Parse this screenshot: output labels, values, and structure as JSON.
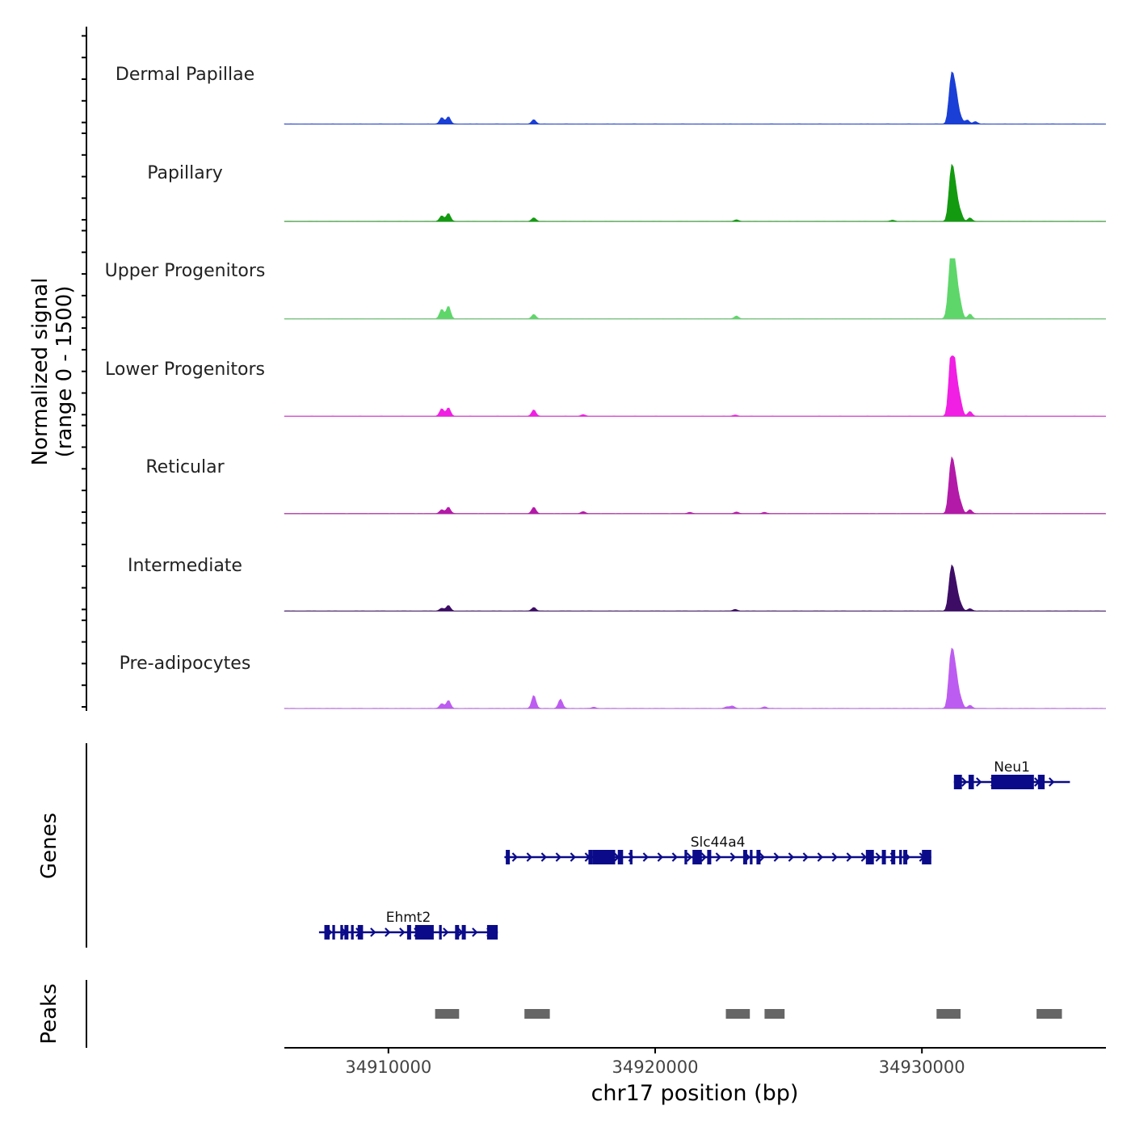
{
  "chart_data": {
    "type": "area",
    "title": "",
    "ylabel_line1": "Normalized signal",
    "ylabel_line2": "(range 0 - 1500)",
    "xlabel": "chr17 position (bp)",
    "xlim": [
      34906100,
      34936900
    ],
    "ylim": [
      0,
      1500
    ],
    "x_ticks": [
      {
        "value": 34910000,
        "label": "34910000"
      },
      {
        "value": 34920000,
        "label": "34920000"
      },
      {
        "value": 34930000,
        "label": "34930000"
      }
    ],
    "gene_panel_label": "Genes",
    "peak_panel_label": "Peaks",
    "tracks": [
      {
        "name": "Dermal Papillae",
        "color": "#1a3fd6",
        "peaks": [
          [
            34912000,
            160
          ],
          [
            34912250,
            180
          ],
          [
            34915450,
            110
          ],
          [
            34931150,
            1050
          ],
          [
            34931450,
            150
          ],
          [
            34931700,
            100
          ],
          [
            34932000,
            60
          ],
          [
            34931050,
            400
          ],
          [
            34931300,
            500
          ]
        ]
      },
      {
        "name": "Papillary",
        "color": "#139a10",
        "peaks": [
          [
            34912000,
            140
          ],
          [
            34912250,
            200
          ],
          [
            34915450,
            90
          ],
          [
            34923050,
            40
          ],
          [
            34928900,
            30
          ],
          [
            34931150,
            1150
          ],
          [
            34931450,
            200
          ],
          [
            34931800,
            90
          ],
          [
            34931050,
            450
          ],
          [
            34931300,
            450
          ]
        ]
      },
      {
        "name": "Upper Progenitors",
        "color": "#5ed66a",
        "peaks": [
          [
            34912000,
            240
          ],
          [
            34912250,
            320
          ],
          [
            34915450,
            110
          ],
          [
            34923050,
            70
          ],
          [
            34931150,
            1550
          ],
          [
            34931450,
            250
          ],
          [
            34931800,
            120
          ],
          [
            34931050,
            650
          ],
          [
            34931300,
            700
          ]
        ]
      },
      {
        "name": "Lower Progenitors",
        "color": "#f01fe3",
        "peaks": [
          [
            34912000,
            190
          ],
          [
            34912250,
            210
          ],
          [
            34915450,
            160
          ],
          [
            34917300,
            40
          ],
          [
            34923000,
            30
          ],
          [
            34931150,
            1400
          ],
          [
            34931450,
            260
          ],
          [
            34931800,
            120
          ],
          [
            34931050,
            600
          ],
          [
            34931300,
            650
          ]
        ]
      },
      {
        "name": "Reticular",
        "color": "#b31aa8",
        "peaks": [
          [
            34912000,
            100
          ],
          [
            34912250,
            160
          ],
          [
            34915450,
            160
          ],
          [
            34917300,
            50
          ],
          [
            34921300,
            30
          ],
          [
            34923050,
            40
          ],
          [
            34924100,
            30
          ],
          [
            34931150,
            1100
          ],
          [
            34931450,
            230
          ],
          [
            34931800,
            100
          ],
          [
            34931050,
            500
          ],
          [
            34931300,
            500
          ]
        ]
      },
      {
        "name": "Intermediate",
        "color": "#3d0d66",
        "peaks": [
          [
            34912000,
            70
          ],
          [
            34912250,
            140
          ],
          [
            34915450,
            90
          ],
          [
            34923000,
            40
          ],
          [
            34931150,
            900
          ],
          [
            34931450,
            150
          ],
          [
            34931800,
            60
          ],
          [
            34931050,
            400
          ],
          [
            34931300,
            400
          ]
        ]
      },
      {
        "name": "Pre-adipocytes",
        "color": "#bd5cf0",
        "peaks": [
          [
            34912000,
            120
          ],
          [
            34912250,
            200
          ],
          [
            34915450,
            330
          ],
          [
            34916450,
            230
          ],
          [
            34917700,
            30
          ],
          [
            34922700,
            40
          ],
          [
            34922900,
            60
          ],
          [
            34924100,
            40
          ],
          [
            34931150,
            1200
          ],
          [
            34931450,
            220
          ],
          [
            34931800,
            80
          ],
          [
            34931050,
            550
          ],
          [
            34931300,
            550
          ]
        ]
      }
    ],
    "genes": [
      {
        "name": "Neu1",
        "start": 34931200,
        "end": 34935550,
        "row": 0,
        "exons": [
          [
            34931200,
            34931500
          ],
          [
            34931750,
            34931950
          ],
          [
            34932600,
            34934200
          ],
          [
            34934350,
            34934600
          ]
        ]
      },
      {
        "name": "Slc44a4",
        "start": 34914350,
        "end": 34930350,
        "row": 1,
        "exons": [
          [
            34914400,
            34914550
          ],
          [
            34917500,
            34917650
          ],
          [
            34917650,
            34918500
          ],
          [
            34918600,
            34918800
          ],
          [
            34919050,
            34919150
          ],
          [
            34921100,
            34921200
          ],
          [
            34921400,
            34921750
          ],
          [
            34921950,
            34922100
          ],
          [
            34923300,
            34923450
          ],
          [
            34923550,
            34923650
          ],
          [
            34923800,
            34923950
          ],
          [
            34927900,
            34928200
          ],
          [
            34928500,
            34928650
          ],
          [
            34928850,
            34929000
          ],
          [
            34929150,
            34929250
          ],
          [
            34929300,
            34929450
          ],
          [
            34930000,
            34930350
          ]
        ]
      },
      {
        "name": "Ehmt2",
        "start": 34907400,
        "end": 34914100,
        "row": 2,
        "exons": [
          [
            34907600,
            34907800
          ],
          [
            34907900,
            34908000
          ],
          [
            34908200,
            34908300
          ],
          [
            34908350,
            34908500
          ],
          [
            34908600,
            34908700
          ],
          [
            34908850,
            34909050
          ],
          [
            34910700,
            34910850
          ],
          [
            34911000,
            34911700
          ],
          [
            34911900,
            34912000
          ],
          [
            34912500,
            34912650
          ],
          [
            34912750,
            34912900
          ],
          [
            34913700,
            34914100
          ]
        ]
      }
    ],
    "peak_regions": [
      [
        34911750,
        34912650
      ],
      [
        34915100,
        34916050
      ],
      [
        34922650,
        34923550
      ],
      [
        34924100,
        34924850
      ],
      [
        34930550,
        34931450
      ],
      [
        34934300,
        34935250
      ]
    ]
  }
}
